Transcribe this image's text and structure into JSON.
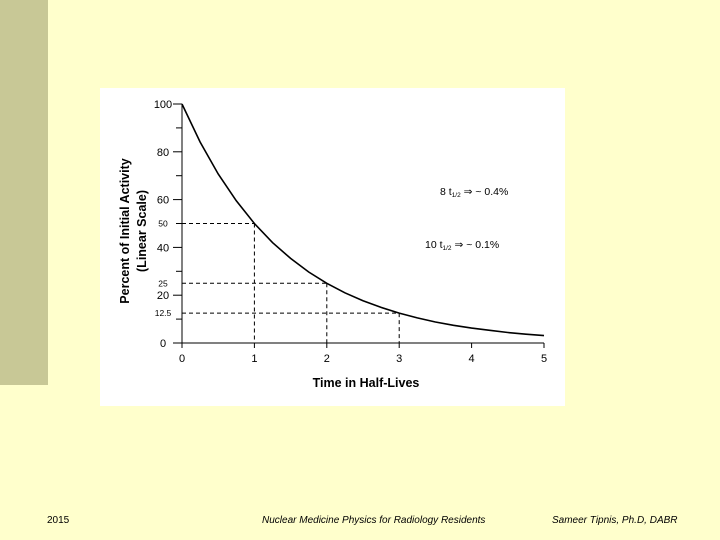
{
  "slide": {
    "footer_left": "2015",
    "footer_center": "Nuclear Medicine Physics for Radiology Residents",
    "footer_right": "Sameer Tipnis, Ph.D, DABR"
  },
  "colors": {
    "background": "#ffffcc",
    "left_bar": "#c8c896",
    "curve": "#000000"
  },
  "chart_data": {
    "type": "line",
    "xlabel": "Time in Half-Lives",
    "ylabel_line1": "Percent of Initial Activity",
    "ylabel_line2": "(Linear Scale)",
    "xlim": [
      0,
      5
    ],
    "ylim": [
      0,
      100
    ],
    "x_ticks": [
      "0",
      "1",
      "2",
      "3",
      "4",
      "5"
    ],
    "y_ticks": [
      "0",
      "20",
      "40",
      "60",
      "80",
      "100"
    ],
    "extra_y_ticks": [
      "12.5",
      "25",
      "50"
    ],
    "series": [
      {
        "x": [
          0,
          0.25,
          0.5,
          0.75,
          1,
          1.25,
          1.5,
          1.75,
          2,
          2.25,
          2.5,
          2.75,
          3,
          3.25,
          3.5,
          3.75,
          4,
          4.25,
          4.5,
          4.75,
          5
        ],
        "values": [
          100,
          84.1,
          70.7,
          59.5,
          50,
          42,
          35.4,
          29.7,
          25,
          21,
          17.7,
          14.9,
          12.5,
          10.5,
          8.8,
          7.4,
          6.25,
          5.3,
          4.4,
          3.7,
          3.1
        ]
      }
    ],
    "reference_points": [
      {
        "x": 1,
        "y": 50
      },
      {
        "x": 2,
        "y": 25
      },
      {
        "x": 3,
        "y": 12.5
      }
    ],
    "annotations": [
      {
        "main": "8 t",
        "sub": "1/2",
        "rest": " ⇒ ~ 0.4%"
      },
      {
        "main": "10 t",
        "sub": "1/2",
        "rest": " ⇒ ~ 0.1%"
      }
    ]
  }
}
